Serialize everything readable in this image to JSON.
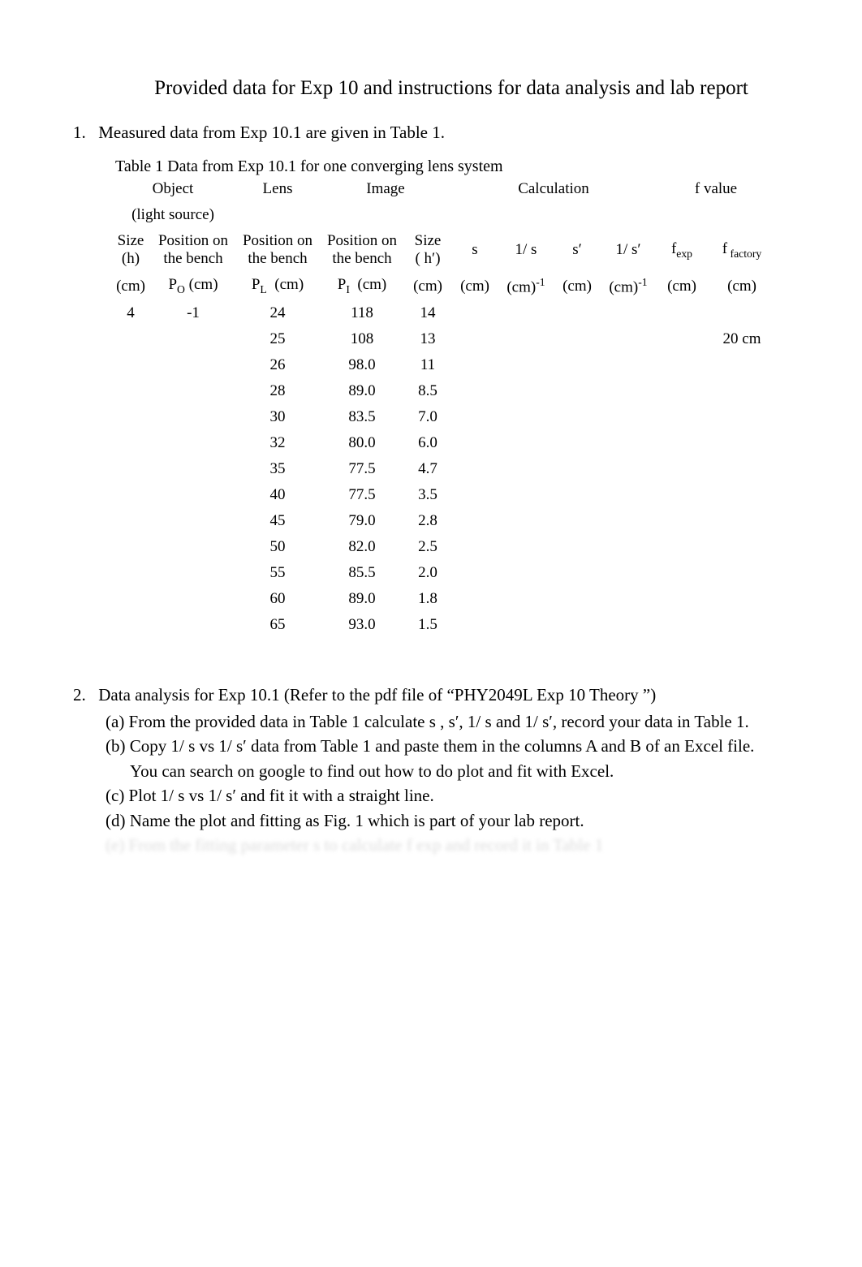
{
  "title": "Provided data for Exp 10 and instructions for data analysis and lab report",
  "section1": {
    "num": "1.",
    "text": "Measured data from Exp 10.1  are given in Table 1."
  },
  "caption": "Table 1  Data from Exp 10.1 for one converging lens system",
  "headers": {
    "object": "Object",
    "lens": "Lens",
    "image": "Image",
    "calculation": "Calculation",
    "fvalue": "f   value",
    "light_source": "(light source)",
    "size": "Size",
    "h": "(h)",
    "cm": "(cm)",
    "pos_bench": "Position on the bench",
    "PO": "P",
    "PO_sub": "O",
    "PL": "P",
    "PL_sub": "L",
    "PI": "P",
    "PI_sub": "I",
    "size_img": "Size",
    "h_prime": "( h′)",
    "s": "s",
    "one_over_s": "1/ s",
    "s_prime": "s′",
    "one_over_s_prime": "1/ s′",
    "cm_inv": "(cm)",
    "cm_inv_sup": "-1",
    "fexp": "f",
    "fexp_sub": "exp",
    "ffactory": "f",
    "ffactory_sub": " factory"
  },
  "fixed": {
    "size_h": "4",
    "PO": "-1",
    "ffactory_val": "20 cm"
  },
  "rows": [
    {
      "PL": "24",
      "PI": "118",
      "h": "14"
    },
    {
      "PL": "25",
      "PI": "108",
      "h": "13"
    },
    {
      "PL": "26",
      "PI": "98.0",
      "h": "11"
    },
    {
      "PL": "28",
      "PI": "89.0",
      "h": "8.5"
    },
    {
      "PL": "30",
      "PI": "83.5",
      "h": "7.0"
    },
    {
      "PL": "32",
      "PI": "80.0",
      "h": "6.0"
    },
    {
      "PL": "35",
      "PI": "77.5",
      "h": "4.7"
    },
    {
      "PL": "40",
      "PI": "77.5",
      "h": "3.5"
    },
    {
      "PL": "45",
      "PI": "79.0",
      "h": "2.8"
    },
    {
      "PL": "50",
      "PI": "82.0",
      "h": "2.5"
    },
    {
      "PL": "55",
      "PI": "85.5",
      "h": "2.0"
    },
    {
      "PL": "60",
      "PI": "89.0",
      "h": "1.8"
    },
    {
      "PL": "65",
      "PI": "93.0",
      "h": "1.5"
    }
  ],
  "section2": {
    "num": "2.",
    "lead": "Data analysis for Exp 10.1   (Refer to the pdf file of “PHY2049L Exp 10 Theory   ”)",
    "a": "(a)  From the provided data in Table 1 calculate  s ,  s′,  1/ s  and  1/ s′, record your data in Table 1.",
    "b": "(b)  Copy  1/ s  vs   1/ s′ data from Table 1 and paste them in the columns A and B of an Excel file.",
    "b2": "You can search on google to find out how to do plot and fit with Excel.",
    "c": "(c)  Plot  1/ s  vs   1/ s′  and fit it with a straight line.",
    "d": "(d)  Name the plot and fitting as Fig. 1    which is part of your lab report.",
    "hidden": "(e)  From the fitting parameter s to calculate   f exp   and record it in Table 1"
  }
}
